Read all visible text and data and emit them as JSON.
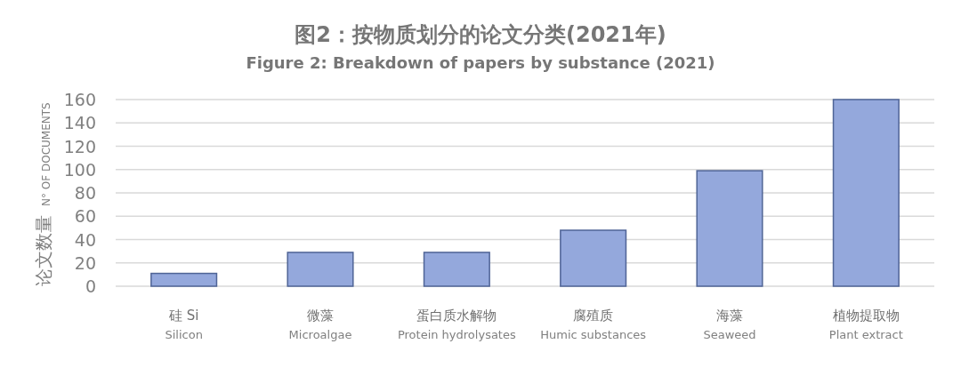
{
  "chart_data": {
    "type": "bar",
    "title": "图2：按物质划分的论文分类(2021年)",
    "subtitle": "Figure 2: Breakdown of papers by substance (2021)",
    "ylabel": "论文数量 N° OF DOCUMENTS",
    "categories": [
      "硅 Si\nSilicon",
      "微藻\nMicroalgae",
      "蛋白质水解物\nProtein hydrolysates",
      "腐殖质\nHumic substances",
      "海藻\nSeaweed",
      "植物提取物\nPlant extract"
    ],
    "values": [
      11,
      29,
      29,
      48,
      99,
      160
    ],
    "color": "#94a8dc",
    "ylim": [
      0,
      160
    ],
    "yticks": [
      0,
      20,
      40,
      60,
      80,
      100,
      120,
      140,
      160
    ],
    "grid": "y"
  }
}
